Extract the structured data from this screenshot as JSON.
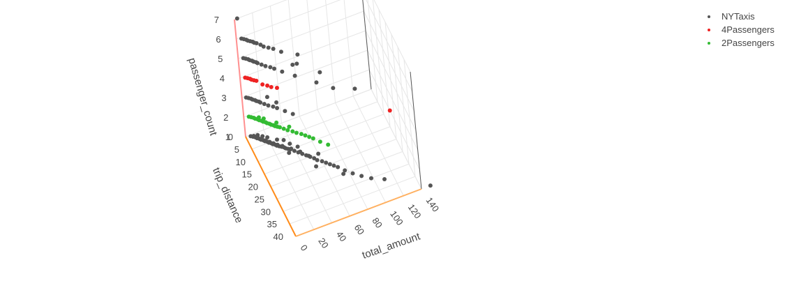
{
  "chart_data": {
    "type": "scatter3d",
    "axes": {
      "x": {
        "label": "trip_distance",
        "ticks": [
          "0",
          "5",
          "10",
          "15",
          "20",
          "25",
          "30",
          "35",
          "40"
        ],
        "range": [
          0,
          40
        ]
      },
      "y": {
        "label": "total_amount",
        "ticks": [
          "0",
          "20",
          "40",
          "60",
          "80",
          "100",
          "120",
          "140"
        ],
        "range": [
          0,
          140
        ]
      },
      "z": {
        "label": "passenger_count",
        "ticks": [
          "1",
          "2",
          "3",
          "4",
          "5",
          "6",
          "7"
        ],
        "range": [
          1,
          7
        ]
      }
    },
    "legend_position": "top-right",
    "series": [
      {
        "name": "NYTaxis",
        "color": "#555555",
        "points": [
          [
            0.5,
            5,
            1
          ],
          [
            1,
            7,
            1
          ],
          [
            1.5,
            9,
            1
          ],
          [
            2,
            10,
            1
          ],
          [
            2.5,
            12,
            1
          ],
          [
            3,
            13,
            1
          ],
          [
            3.5,
            15,
            1
          ],
          [
            4,
            16,
            1
          ],
          [
            4.5,
            18,
            1
          ],
          [
            5,
            19,
            1
          ],
          [
            5.5,
            21,
            1
          ],
          [
            6,
            22,
            1
          ],
          [
            6.5,
            24,
            1
          ],
          [
            7,
            25,
            1
          ],
          [
            7.5,
            27,
            1
          ],
          [
            8,
            29,
            1
          ],
          [
            8.5,
            31,
            1
          ],
          [
            9,
            32,
            1
          ],
          [
            9.5,
            34,
            1
          ],
          [
            10,
            36,
            1
          ],
          [
            11,
            39,
            1
          ],
          [
            12,
            42,
            1
          ],
          [
            13,
            45,
            1
          ],
          [
            14,
            48,
            1
          ],
          [
            15,
            51,
            1
          ],
          [
            16,
            54,
            1
          ],
          [
            17,
            56,
            1
          ],
          [
            18,
            60,
            1
          ],
          [
            19,
            63,
            1
          ],
          [
            20,
            66,
            1
          ],
          [
            21,
            69,
            1
          ],
          [
            22,
            72,
            1
          ],
          [
            24,
            77,
            1
          ],
          [
            26,
            83,
            1
          ],
          [
            28,
            90,
            1
          ],
          [
            30,
            98,
            1
          ],
          [
            0.8,
            8,
            1
          ],
          [
            1.8,
            11,
            1
          ],
          [
            2.8,
            14,
            1
          ],
          [
            3.8,
            17,
            1
          ],
          [
            4.8,
            20,
            1
          ],
          [
            5.8,
            23,
            1
          ],
          [
            6.8,
            26,
            1
          ],
          [
            7.8,
            30,
            1
          ],
          [
            9.8,
            37,
            1
          ],
          [
            12,
            44,
            1
          ],
          [
            14.5,
            50,
            1
          ],
          [
            3,
            20,
            1
          ],
          [
            5,
            28,
            1
          ],
          [
            8,
            38,
            1
          ],
          [
            2,
            16,
            1
          ],
          [
            10,
            44,
            1
          ],
          [
            15,
            60,
            1
          ],
          [
            19,
            52,
            1
          ],
          [
            25,
            74,
            1
          ],
          [
            32,
            110,
            1
          ],
          [
            40,
            150,
            1
          ],
          [
            6,
            34,
            1
          ],
          [
            1,
            12,
            1
          ],
          [
            11,
            33,
            1
          ],
          [
            0.5,
            4,
            3
          ],
          [
            1,
            6,
            3
          ],
          [
            1.5,
            8,
            3
          ],
          [
            2,
            9,
            3
          ],
          [
            2.5,
            11,
            3
          ],
          [
            3,
            12,
            3
          ],
          [
            3.5,
            14,
            3
          ],
          [
            4,
            15,
            3
          ],
          [
            5,
            18,
            3
          ],
          [
            6,
            21,
            3
          ],
          [
            7,
            25,
            3
          ],
          [
            8,
            28,
            3
          ],
          [
            10,
            34,
            3
          ],
          [
            12,
            40,
            3
          ],
          [
            3,
            24,
            3
          ],
          [
            6,
            30,
            3
          ],
          [
            0.5,
            5,
            5
          ],
          [
            1,
            7,
            5
          ],
          [
            1.5,
            9,
            5
          ],
          [
            2,
            10,
            5
          ],
          [
            2.5,
            12,
            5
          ],
          [
            3,
            13,
            5
          ],
          [
            3.5,
            15,
            5
          ],
          [
            4,
            16,
            5
          ],
          [
            5,
            19,
            5
          ],
          [
            6,
            22,
            5
          ],
          [
            7,
            26,
            5
          ],
          [
            8,
            29,
            5
          ],
          [
            10,
            35,
            5
          ],
          [
            13,
            45,
            5
          ],
          [
            18,
            62,
            5
          ],
          [
            22,
            75,
            5
          ],
          [
            15,
            70,
            5
          ],
          [
            25,
            95,
            5
          ],
          [
            9,
            48,
            5
          ],
          [
            0.5,
            5,
            6
          ],
          [
            1,
            7,
            6
          ],
          [
            1.5,
            9,
            6
          ],
          [
            2,
            10,
            6
          ],
          [
            2.5,
            12,
            6
          ],
          [
            3,
            14,
            6
          ],
          [
            3.5,
            15,
            6
          ],
          [
            4,
            17,
            6
          ],
          [
            5,
            20,
            6
          ],
          [
            6,
            22,
            6
          ],
          [
            7,
            26,
            6
          ],
          [
            8,
            30,
            6
          ],
          [
            10,
            36,
            6
          ],
          [
            13,
            50,
            6
          ],
          [
            16,
            45,
            6
          ],
          [
            0,
            3,
            7
          ]
        ]
      },
      {
        "name": "4Passengers",
        "color": "#ee2222",
        "points": [
          [
            0.5,
            5,
            4
          ],
          [
            1,
            7,
            4
          ],
          [
            1.5,
            9,
            4
          ],
          [
            2,
            10,
            4
          ],
          [
            2.5,
            12,
            4
          ],
          [
            3,
            14,
            4
          ],
          [
            5,
            18,
            4
          ],
          [
            6,
            22,
            4
          ],
          [
            7,
            25,
            4
          ],
          [
            8,
            30,
            4
          ],
          [
            30,
            125,
            4
          ]
        ]
      },
      {
        "name": "2Passengers",
        "color": "#33bb33",
        "points": [
          [
            0.5,
            5,
            2
          ],
          [
            1,
            7,
            2
          ],
          [
            1.5,
            9,
            2
          ],
          [
            2,
            10,
            2
          ],
          [
            2.5,
            12,
            2
          ],
          [
            3,
            13,
            2
          ],
          [
            3.5,
            15,
            2
          ],
          [
            4,
            16,
            2
          ],
          [
            4.5,
            18,
            2
          ],
          [
            5,
            19,
            2
          ],
          [
            5.5,
            21,
            2
          ],
          [
            6,
            22,
            2
          ],
          [
            6.5,
            24,
            2
          ],
          [
            7,
            25,
            2
          ],
          [
            7.5,
            27,
            2
          ],
          [
            8,
            29,
            2
          ],
          [
            9,
            32,
            2
          ],
          [
            10,
            35,
            2
          ],
          [
            11,
            39,
            2
          ],
          [
            12,
            42,
            2
          ],
          [
            13,
            46,
            2
          ],
          [
            14,
            49,
            2
          ],
          [
            15,
            52,
            2
          ],
          [
            16,
            55,
            2
          ],
          [
            18,
            60,
            2
          ],
          [
            3,
            18,
            2
          ],
          [
            6,
            28,
            2
          ],
          [
            9,
            38,
            2
          ],
          [
            2,
            14,
            2
          ],
          [
            20,
            66,
            2
          ]
        ]
      }
    ]
  }
}
